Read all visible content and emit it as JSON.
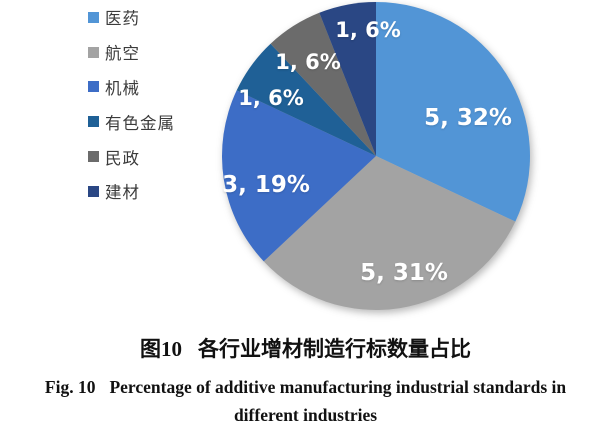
{
  "chart_data": {
    "type": "pie",
    "title": "",
    "legend_position": "left",
    "direction": "clockwise",
    "start_angle_deg": 0,
    "total_value": 16,
    "slices": [
      {
        "name": "医药",
        "value": 5,
        "percent": 32,
        "label": "5, 32%",
        "color": "#5295D6"
      },
      {
        "name": "航空",
        "value": 5,
        "percent": 31,
        "label": "5, 31%",
        "color": "#A3A3A3"
      },
      {
        "name": "机械",
        "value": 3,
        "percent": 19,
        "label": "3, 19%",
        "color": "#3D6DC6"
      },
      {
        "name": "有色金属",
        "value": 1,
        "percent": 6,
        "label": "1, 6%",
        "color": "#1F6096"
      },
      {
        "name": "民政",
        "value": 1,
        "percent": 6,
        "label": "1, 6%",
        "color": "#6B6B6B"
      },
      {
        "name": "建材",
        "value": 1,
        "percent": 6,
        "label": "1, 6%",
        "color": "#2A4784"
      }
    ]
  },
  "caption": {
    "zh_tag": "图10",
    "zh_title": "各行业增材制造行标数量占比",
    "en_tag": "Fig. 10",
    "en_text": "Percentage of additive manufacturing industrial standards in",
    "en_line2": "different industries"
  }
}
